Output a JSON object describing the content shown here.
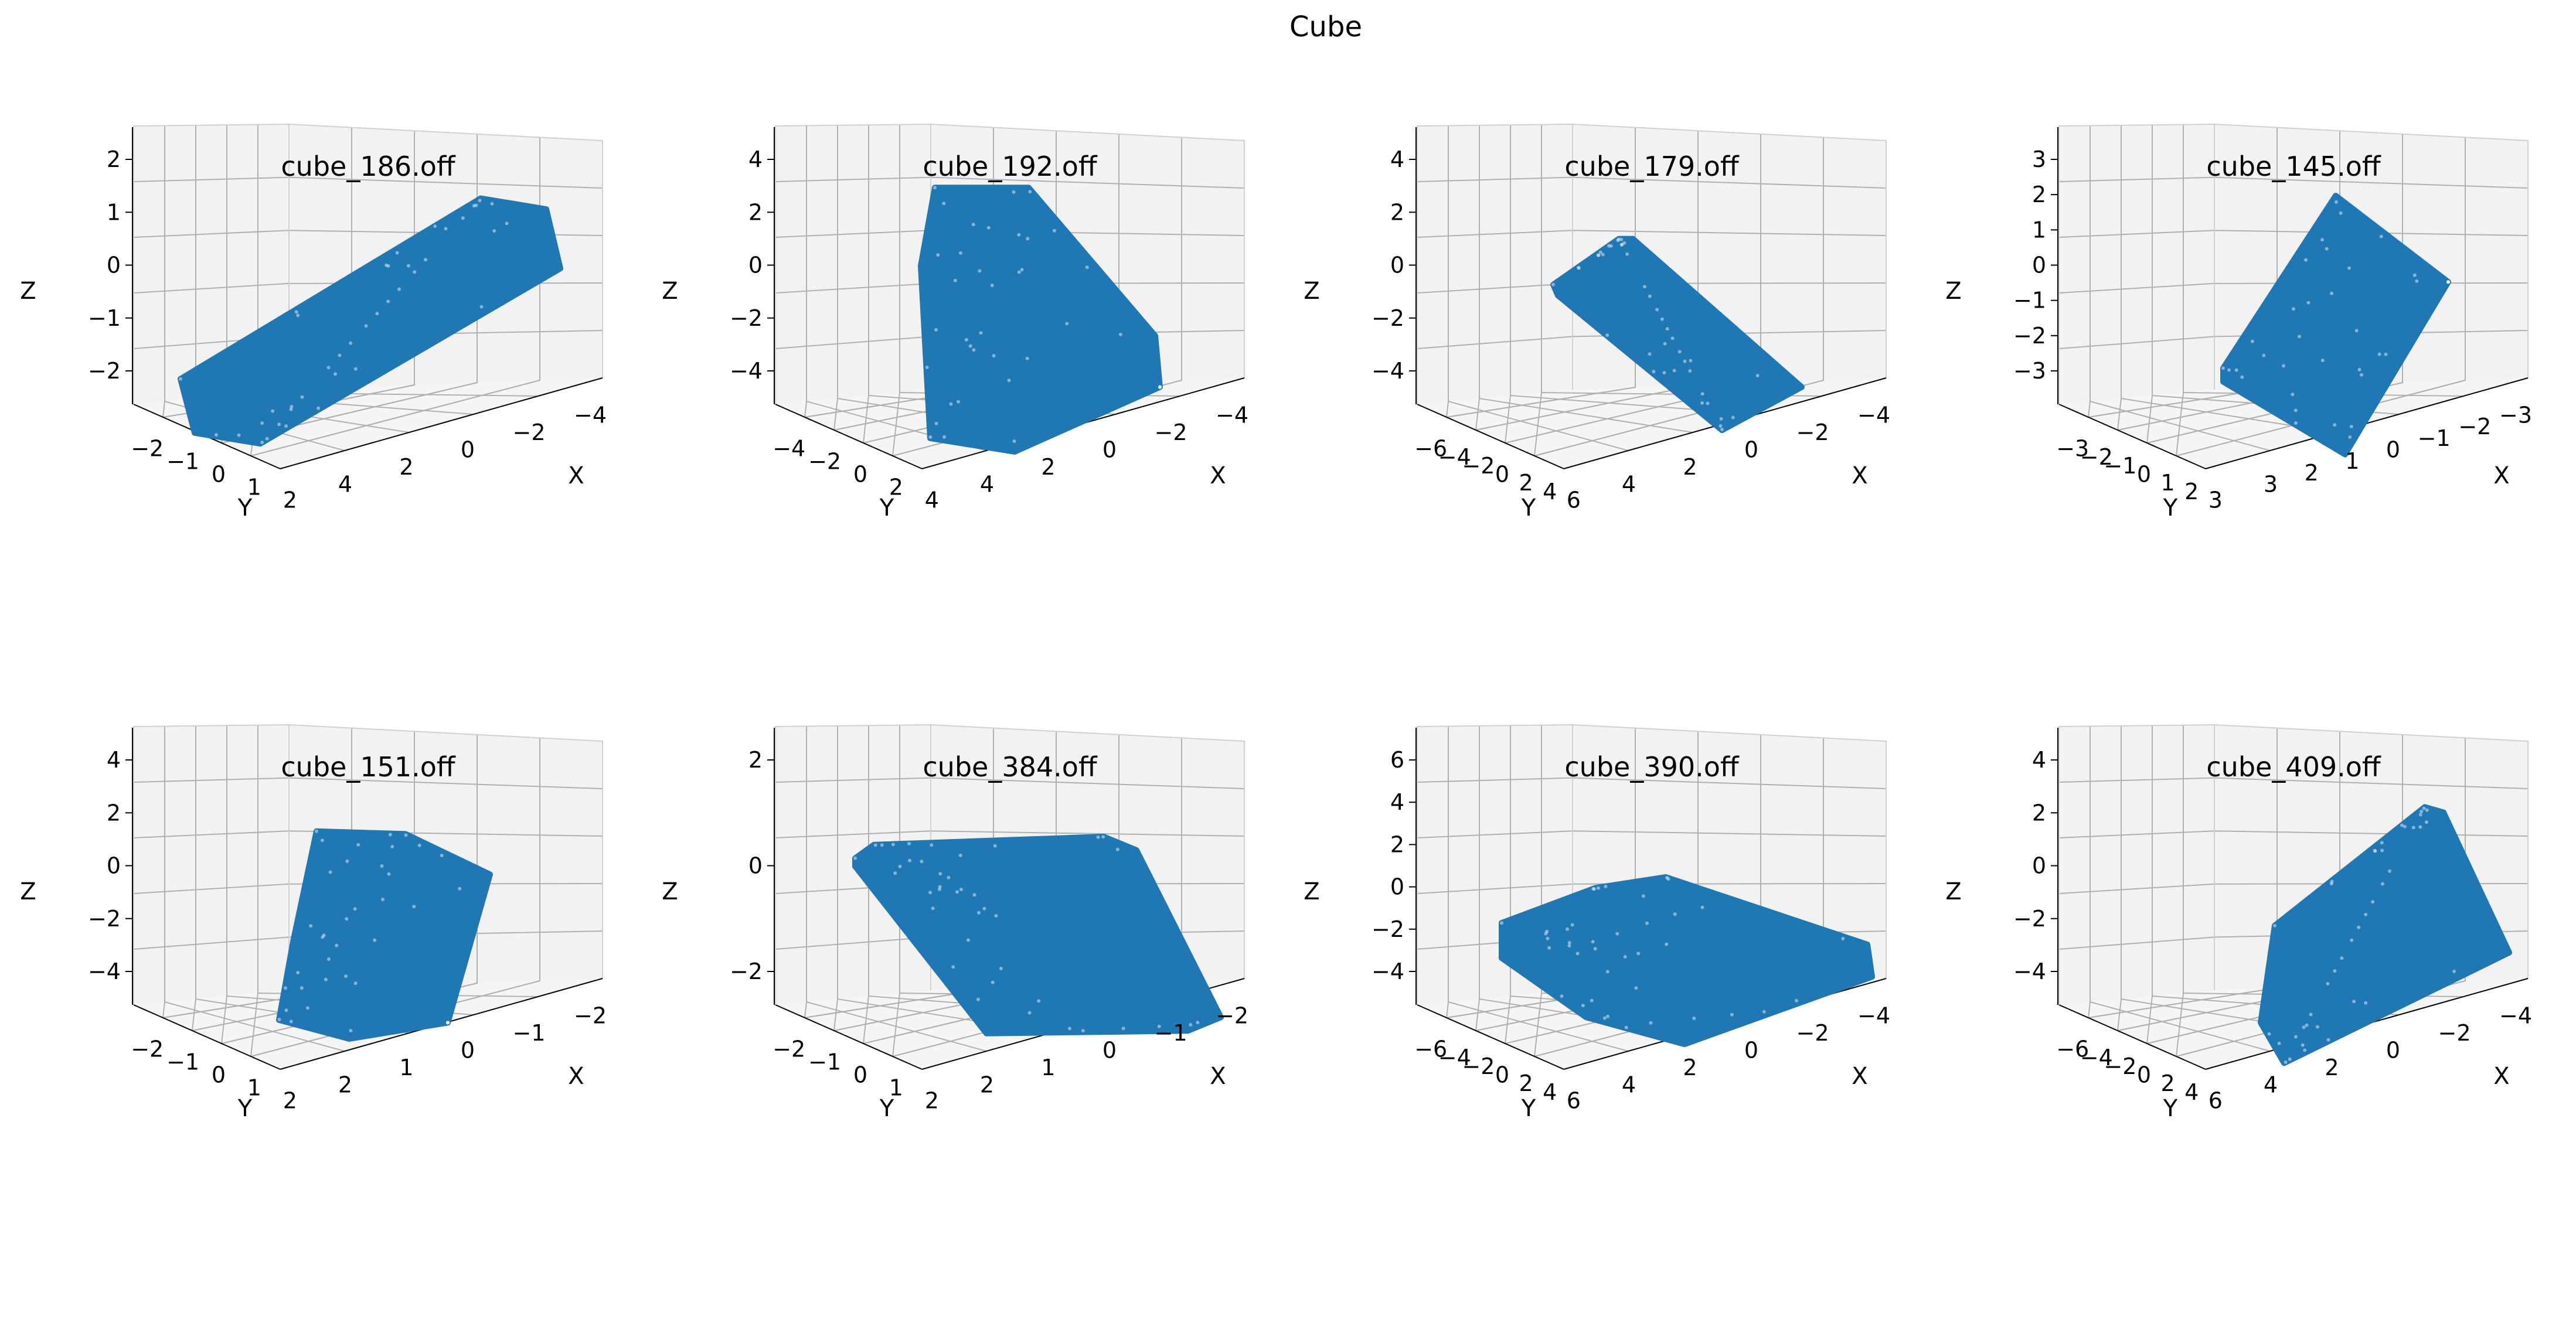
{
  "figure": {
    "title": "Cube",
    "point_color": "#1f77b4",
    "pane_color": "#f2f2f2",
    "grid_color": "#b0b0b0"
  },
  "chart_data": [
    {
      "type": "scatter",
      "projection": "3d",
      "title": "cube_186.off",
      "xlabel": "X",
      "ylabel": "Y",
      "zlabel": "Z",
      "xticks": [
        "4",
        "2",
        "0",
        "−2",
        "−4"
      ],
      "yticks": [
        "−2",
        "−1",
        "0",
        "1",
        "2"
      ],
      "zticks": [
        "−2",
        "−1",
        "0",
        "1",
        "2"
      ],
      "shape": [
        [
          0.1,
          0.83
        ],
        [
          0.74,
          0.16
        ],
        [
          0.88,
          0.2
        ],
        [
          0.91,
          0.42
        ],
        [
          0.27,
          1.07
        ],
        [
          0.13,
          1.03
        ]
      ]
    },
    {
      "type": "scatter",
      "projection": "3d",
      "title": "cube_192.off",
      "xlabel": "X",
      "ylabel": "Y",
      "zlabel": "Z",
      "xticks": [
        "4",
        "2",
        "0",
        "−2",
        "−4"
      ],
      "yticks": [
        "−4",
        "−2",
        "0",
        "2",
        "4"
      ],
      "zticks": [
        "−4",
        "−2",
        "0",
        "2",
        "4"
      ],
      "shape": [
        [
          0.34,
          0.12
        ],
        [
          0.54,
          0.12
        ],
        [
          0.81,
          0.67
        ],
        [
          0.82,
          0.86
        ],
        [
          0.51,
          1.1
        ],
        [
          0.33,
          1.05
        ],
        [
          0.31,
          0.41
        ]
      ]
    },
    {
      "type": "scatter",
      "projection": "3d",
      "title": "cube_179.off",
      "xlabel": "X",
      "ylabel": "Y",
      "zlabel": "Z",
      "xticks": [
        "4",
        "2",
        "0",
        "−2",
        "−4"
      ],
      "yticks": [
        "−6",
        "−4",
        "−2",
        "0",
        "2",
        "4",
        "6"
      ],
      "zticks": [
        "−4",
        "−2",
        "0",
        "2",
        "4"
      ],
      "shape": [
        [
          0.29,
          0.48
        ],
        [
          0.43,
          0.31
        ],
        [
          0.46,
          0.31
        ],
        [
          0.82,
          0.86
        ],
        [
          0.65,
          1.02
        ],
        [
          0.3,
          0.52
        ]
      ]
    },
    {
      "type": "scatter",
      "projection": "3d",
      "title": "cube_145.off",
      "xlabel": "X",
      "ylabel": "Y",
      "zlabel": "Z",
      "xticks": [
        "3",
        "2",
        "1",
        "0",
        "−1",
        "−2",
        "−3"
      ],
      "yticks": [
        "−3",
        "−2",
        "−1",
        "0",
        "1",
        "2",
        "3"
      ],
      "zticks": [
        "−3",
        "−2",
        "−1",
        "0",
        "1",
        "2",
        "3"
      ],
      "shape": [
        [
          0.35,
          0.79
        ],
        [
          0.59,
          0.15
        ],
        [
          0.83,
          0.47
        ],
        [
          0.61,
          1.11
        ],
        [
          0.35,
          0.84
        ]
      ]
    },
    {
      "type": "scatter",
      "projection": "3d",
      "title": "cube_151.off",
      "xlabel": "X",
      "ylabel": "Y",
      "zlabel": "Z",
      "xticks": [
        "2",
        "1",
        "0",
        "−1",
        "−2"
      ],
      "yticks": [
        "−2",
        "−1",
        "0",
        "1",
        "2"
      ],
      "zticks": [
        "−4",
        "−2",
        "0",
        "2",
        "4"
      ],
      "shape": [
        [
          0.39,
          0.28
        ],
        [
          0.58,
          0.29
        ],
        [
          0.76,
          0.44
        ],
        [
          0.67,
          0.99
        ],
        [
          0.46,
          1.05
        ],
        [
          0.31,
          0.98
        ],
        [
          0.34,
          0.69
        ]
      ]
    },
    {
      "type": "scatter",
      "projection": "3d",
      "title": "cube_384.off",
      "xlabel": "X",
      "ylabel": "Y",
      "zlabel": "Z",
      "xticks": [
        "2",
        "1",
        "0",
        "−1",
        "−2"
      ],
      "yticks": [
        "−2",
        "−1",
        "0",
        "1",
        "2"
      ],
      "zticks": [
        "−2",
        "0",
        "2"
      ],
      "shape": [
        [
          0.17,
          0.38
        ],
        [
          0.21,
          0.33
        ],
        [
          0.7,
          0.3
        ],
        [
          0.77,
          0.35
        ],
        [
          0.95,
          0.97
        ],
        [
          0.88,
          1.02
        ],
        [
          0.45,
          1.03
        ],
        [
          0.17,
          0.41
        ]
      ]
    },
    {
      "type": "scatter",
      "projection": "3d",
      "title": "cube_390.off",
      "xlabel": "X",
      "ylabel": "Y",
      "zlabel": "Z",
      "xticks": [
        "4",
        "2",
        "0",
        "−2",
        "−4"
      ],
      "yticks": [
        "−6",
        "−4",
        "−2",
        "0",
        "2",
        "4",
        "6"
      ],
      "zticks": [
        "−4",
        "−2",
        "0",
        "2",
        "4",
        "6"
      ],
      "shape": [
        [
          0.18,
          0.62
        ],
        [
          0.38,
          0.49
        ],
        [
          0.53,
          0.45
        ],
        [
          0.96,
          0.7
        ],
        [
          0.97,
          0.82
        ],
        [
          0.57,
          1.07
        ],
        [
          0.36,
          0.97
        ],
        [
          0.18,
          0.75
        ]
      ]
    },
    {
      "type": "scatter",
      "projection": "3d",
      "title": "cube_409.off",
      "xlabel": "X",
      "ylabel": "Y",
      "zlabel": "Z",
      "xticks": [
        "4",
        "2",
        "0",
        "−2",
        "−4"
      ],
      "yticks": [
        "−6",
        "−4",
        "−2",
        "0",
        "2",
        "4",
        "6"
      ],
      "zticks": [
        "−4",
        "−2",
        "0",
        "2",
        "4"
      ],
      "shape": [
        [
          0.46,
          0.63
        ],
        [
          0.78,
          0.19
        ],
        [
          0.82,
          0.21
        ],
        [
          0.96,
          0.73
        ],
        [
          0.48,
          1.14
        ],
        [
          0.43,
          0.99
        ]
      ]
    }
  ]
}
